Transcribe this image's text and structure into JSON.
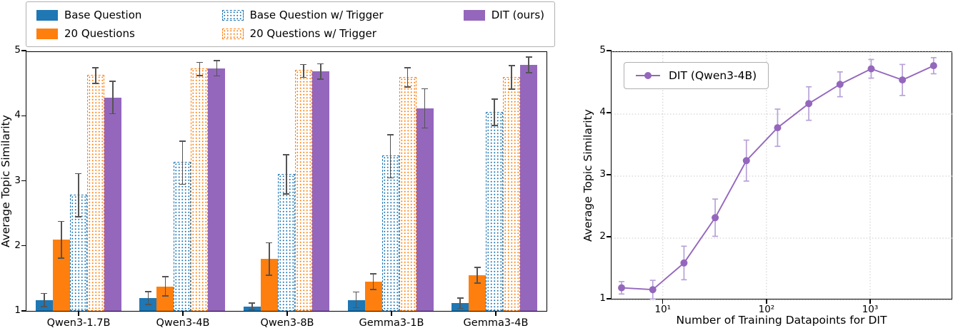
{
  "colors": {
    "blue": "#1f77b4",
    "orange": "#ff7f0e",
    "purple": "#9467bd",
    "errorbar_gray": "#545454",
    "errorbar_purple": "#b7a2d8",
    "grid_gray": "#c8c8c8"
  },
  "chart_data": [
    {
      "type": "bar",
      "title": "",
      "ylabel": "Average Topic Similarity",
      "xlabel": "",
      "ylim": [
        1,
        5
      ],
      "yticks": [
        1,
        2,
        3,
        4,
        5
      ],
      "grid": false,
      "legend_position": "above plot, outside, 3 columns",
      "categories": [
        "Qwen3-1.7B",
        "Qwen3-4B",
        "Qwen3-8B",
        "Gemma3-1B",
        "Gemma3-4B"
      ],
      "series": [
        {
          "name": "Base Question",
          "style": "solid-blue",
          "values": [
            1.17,
            1.2,
            1.07,
            1.17,
            1.12
          ],
          "errors": [
            0.1,
            0.1,
            0.05,
            0.12,
            0.08
          ]
        },
        {
          "name": "20 Questions",
          "style": "solid-orange",
          "values": [
            2.1,
            1.38,
            1.8,
            1.45,
            1.55
          ],
          "errors": [
            0.28,
            0.15,
            0.25,
            0.12,
            0.12
          ]
        },
        {
          "name": "Base Question w/ Trigger",
          "style": "hatch-blue",
          "values": [
            2.8,
            3.3,
            3.12,
            3.4,
            4.08
          ],
          "errors": [
            0.33,
            0.33,
            0.3,
            0.33,
            0.2
          ]
        },
        {
          "name": "20 Questions w/ Trigger",
          "style": "hatch-orange",
          "values": [
            4.65,
            4.75,
            4.72,
            4.62,
            4.62
          ],
          "errors": [
            0.12,
            0.1,
            0.1,
            0.15,
            0.18
          ]
        },
        {
          "name": "DIT (ours)",
          "style": "solid-purple",
          "values": [
            4.3,
            4.75,
            4.7,
            4.13,
            4.8
          ],
          "errors": [
            0.25,
            0.12,
            0.12,
            0.3,
            0.12
          ]
        }
      ]
    },
    {
      "type": "line",
      "name": "DIT (Qwen3-4B)",
      "xlabel": "Number of Training Datapoints for DIT",
      "ylabel": "Average Topic Similarity",
      "xscale": "log",
      "xlim": [
        3.2,
        6300
      ],
      "ylim": [
        1,
        5
      ],
      "yticks": [
        1,
        2,
        3,
        4,
        5
      ],
      "xticks": [
        10,
        100,
        1000
      ],
      "xtick_labels": [
        "10¹",
        "10²",
        "10³"
      ],
      "grid": true,
      "legend_position": "upper left inside",
      "x": [
        4,
        8,
        16,
        32,
        64,
        128,
        256,
        512,
        1024,
        2048,
        4096
      ],
      "y": [
        1.2,
        1.17,
        1.6,
        2.33,
        3.25,
        3.78,
        4.17,
        4.48,
        4.73,
        4.55,
        4.78
      ],
      "errors": [
        0.1,
        0.15,
        0.27,
        0.3,
        0.33,
        0.3,
        0.27,
        0.2,
        0.15,
        0.25,
        0.13
      ]
    }
  ]
}
